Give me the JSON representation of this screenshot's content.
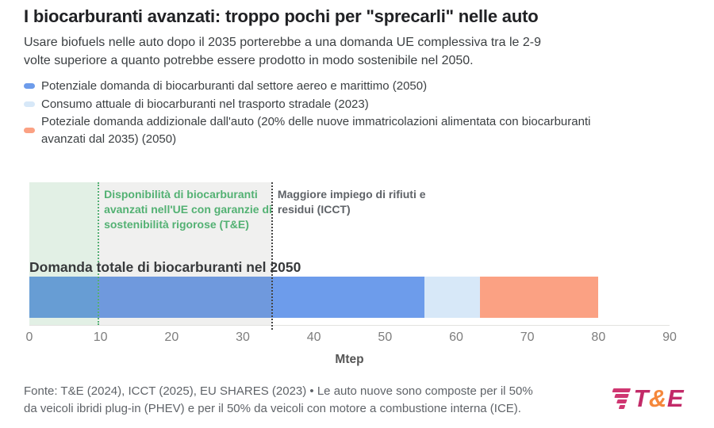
{
  "header": {
    "title": "I biocarburanti avanzati: troppo pochi per \"sprecarli\" nelle auto",
    "subtitle_lines": [
      "Usare biofuels nelle auto dopo il 2035 porterebbe a una domanda UE complessiva tra le 2-9",
      "volte superiore a quanto potrebbe essere prodotto in modo sostenibile nel 2050."
    ]
  },
  "chart_data": {
    "type": "bar",
    "orientation": "horizontal_stacked",
    "bar_label": "Domanda totale di biocarburanti nel 2050",
    "xlabel": "Mtep",
    "x_axis": {
      "min": 0,
      "max": 90,
      "ticks": [
        0,
        10,
        20,
        30,
        40,
        50,
        60,
        70,
        80,
        90
      ]
    },
    "total_mtep": 80,
    "series": [
      {
        "name": "Potenziale domanda di biocarburanti dal settore aereo e marittimo (2050)",
        "value": 55.5,
        "color": "#6d9ceb"
      },
      {
        "name": "Consumo attuale di biocarburanti nel trasporto stradale (2023)",
        "value": 7.8,
        "color": "#d7e8f8"
      },
      {
        "name": "Poteziale domanda addizionale dall'auto (20% delle nuove immatricolazioni alimentata con biocarburanti avanzati dal 2035) (2050)",
        "value": 16.7,
        "color": "#fba183"
      }
    ],
    "reference_bands": [
      {
        "label": "Disponibilità di biocarburanti avanzati nell'UE con garanzie di sostenibilità rigorose (T&E)",
        "from": 0,
        "to": 9.6,
        "fill": "rgba(72,162,96,0.16)",
        "line_color": "#53b173",
        "text_color": "#53b173"
      },
      {
        "label": "Maggiore impiego di rifiuti e residui (ICCT)",
        "from": 9.6,
        "to": 34,
        "fill": "rgba(130,130,120,0.12)",
        "line_color": "#444444",
        "text_color": "#5f6368"
      }
    ]
  },
  "footer": {
    "source_lines": [
      "Fonte: T&E (2024), ICCT (2025), EU SHARES (2023) • Le auto nuove sono composte per il 50%",
      "da veicoli ibridi plug-in (PHEV) e per il 50% da veicoli con motore a combustione interna (ICE)."
    ],
    "logo": {
      "t": "T",
      "amp": "&",
      "e": "E"
    }
  }
}
